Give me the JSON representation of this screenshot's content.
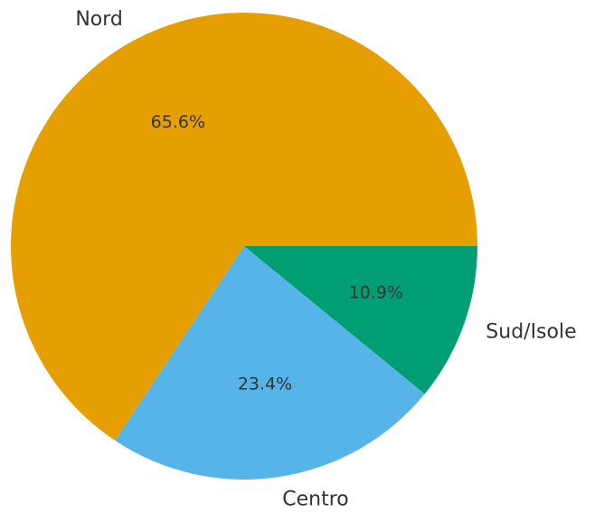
{
  "chart_data": {
    "type": "pie",
    "categories": [
      "Nord",
      "Centro",
      "Sud/Isole"
    ],
    "values": [
      65.6,
      23.4,
      10.9
    ],
    "value_labels": [
      "65.6%",
      "23.4%",
      "10.9%"
    ],
    "colors": [
      "#E69F00",
      "#56B4E9",
      "#009E73"
    ]
  }
}
